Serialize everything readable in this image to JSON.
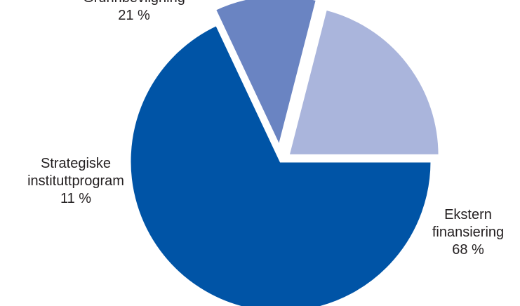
{
  "chart_data": {
    "type": "pie",
    "slices": [
      {
        "label_lines": [
          "Ekstern",
          "finansiering"
        ],
        "value_label": "68 %",
        "value": 68,
        "color": "#0054a6"
      },
      {
        "label_lines": [
          "Strategiske",
          "instituttprogram"
        ],
        "value_label": "11 %",
        "value": 11,
        "color": "#6a84c2"
      },
      {
        "label_lines": [
          "Grunnbevilgning"
        ],
        "value_label": "21 %",
        "value": 21,
        "color": "#aab5dc"
      }
    ]
  }
}
